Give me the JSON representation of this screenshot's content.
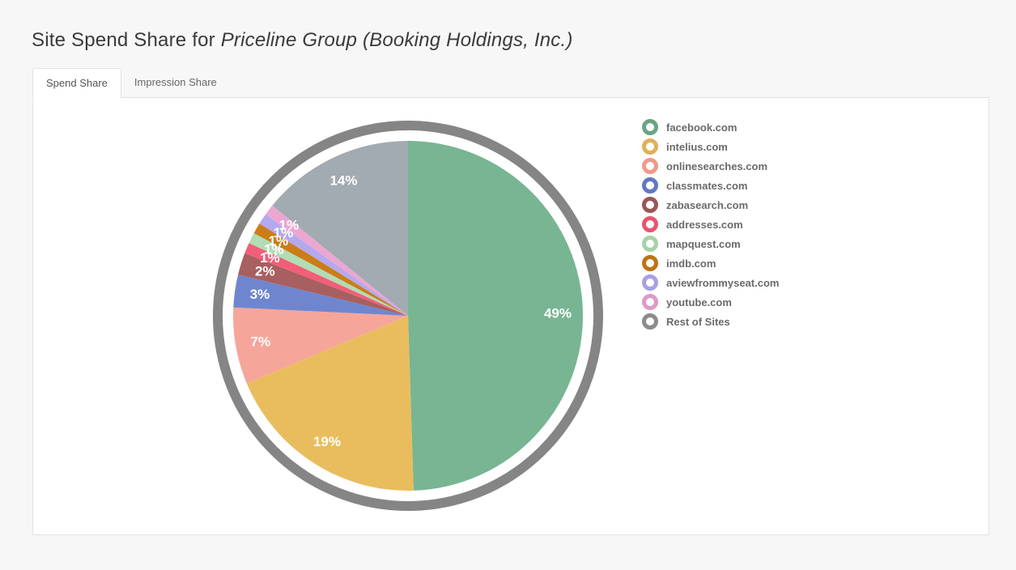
{
  "header": {
    "title_prefix": "Site Spend Share for ",
    "company": "Priceline Group (Booking Holdings, Inc.)"
  },
  "tabs": [
    {
      "label": "Spend Share",
      "active": true
    },
    {
      "label": "Impression Share",
      "active": false
    }
  ],
  "chart_data": {
    "type": "pie",
    "title": "",
    "legend_position": "right",
    "slices": [
      {
        "name": "facebook.com",
        "value": 49,
        "label": "49%",
        "color": "#78b593"
      },
      {
        "name": "intelius.com",
        "value": 19,
        "label": "19%",
        "color": "#e9bd5e"
      },
      {
        "name": "onlinesearches.com",
        "value": 7,
        "label": "7%",
        "color": "#f6a59b"
      },
      {
        "name": "classmates.com",
        "value": 3,
        "label": "3%",
        "color": "#6f86cf"
      },
      {
        "name": "zabasearch.com",
        "value": 2,
        "label": "2%",
        "color": "#a85f5f"
      },
      {
        "name": "addresses.com",
        "value": 1,
        "label": "1%",
        "color": "#f25e78"
      },
      {
        "name": "mapquest.com",
        "value": 1,
        "label": "1%",
        "color": "#b2dcb3"
      },
      {
        "name": "imdb.com",
        "value": 1,
        "label": "1%",
        "color": "#cb7d17"
      },
      {
        "name": "aviewfrommyseat.com",
        "value": 1,
        "label": "1%",
        "color": "#b5a9ee"
      },
      {
        "name": "youtube.com",
        "value": 1,
        "label": "1%",
        "color": "#eca6d2"
      },
      {
        "name": "Rest of Sites",
        "value": 14,
        "label": "14%",
        "color": "#a2aab2"
      }
    ],
    "ring_color": "#858585",
    "legend_marker_colors": [
      "#6aa482",
      "#deb25a",
      "#ef9a8d",
      "#6278c4",
      "#9a5656",
      "#e65570",
      "#a7d1a6",
      "#bd7314",
      "#ab9fe3",
      "#e099c6",
      "#8b8b8b"
    ]
  }
}
